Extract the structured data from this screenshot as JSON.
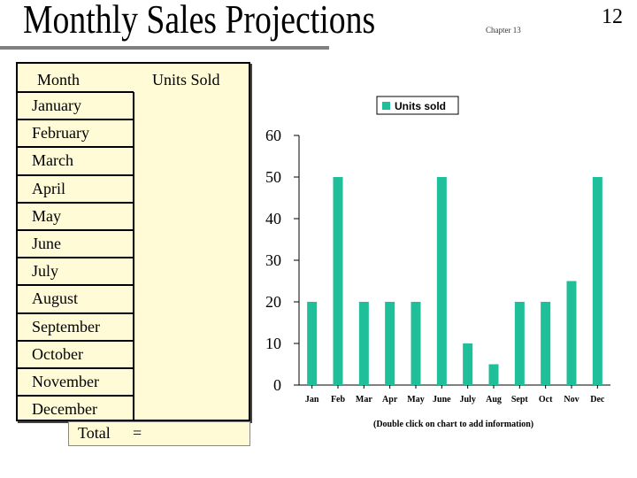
{
  "slide": {
    "title": "Monthly Sales Projections",
    "chapter": "Chapter 13",
    "page_number": "12"
  },
  "table": {
    "header_month": "Month",
    "header_units": "Units Sold",
    "months": [
      "January",
      "February",
      "March",
      "April",
      "May",
      "June",
      "July",
      "August",
      "September",
      "October",
      "November",
      "December"
    ],
    "total_label": "Total",
    "total_value": "="
  },
  "footnote": "(Double click on chart to add information)",
  "colors": {
    "bar": "#1fbf99",
    "table_fill": "#fffbd6"
  },
  "chart_data": {
    "type": "bar",
    "categories": [
      "Jan",
      "Feb",
      "Mar",
      "Apr",
      "May",
      "June",
      "July",
      "Aug",
      "Sept",
      "Oct",
      "Nov",
      "Dec"
    ],
    "series": [
      {
        "name": "Units sold",
        "values": [
          20,
          50,
          20,
          20,
          20,
          50,
          10,
          5,
          20,
          20,
          25,
          50
        ]
      }
    ],
    "y_ticks": [
      0,
      10,
      20,
      30,
      40,
      50,
      60
    ],
    "ylim": [
      0,
      60
    ],
    "grid": false,
    "legend_position": "top-right"
  }
}
